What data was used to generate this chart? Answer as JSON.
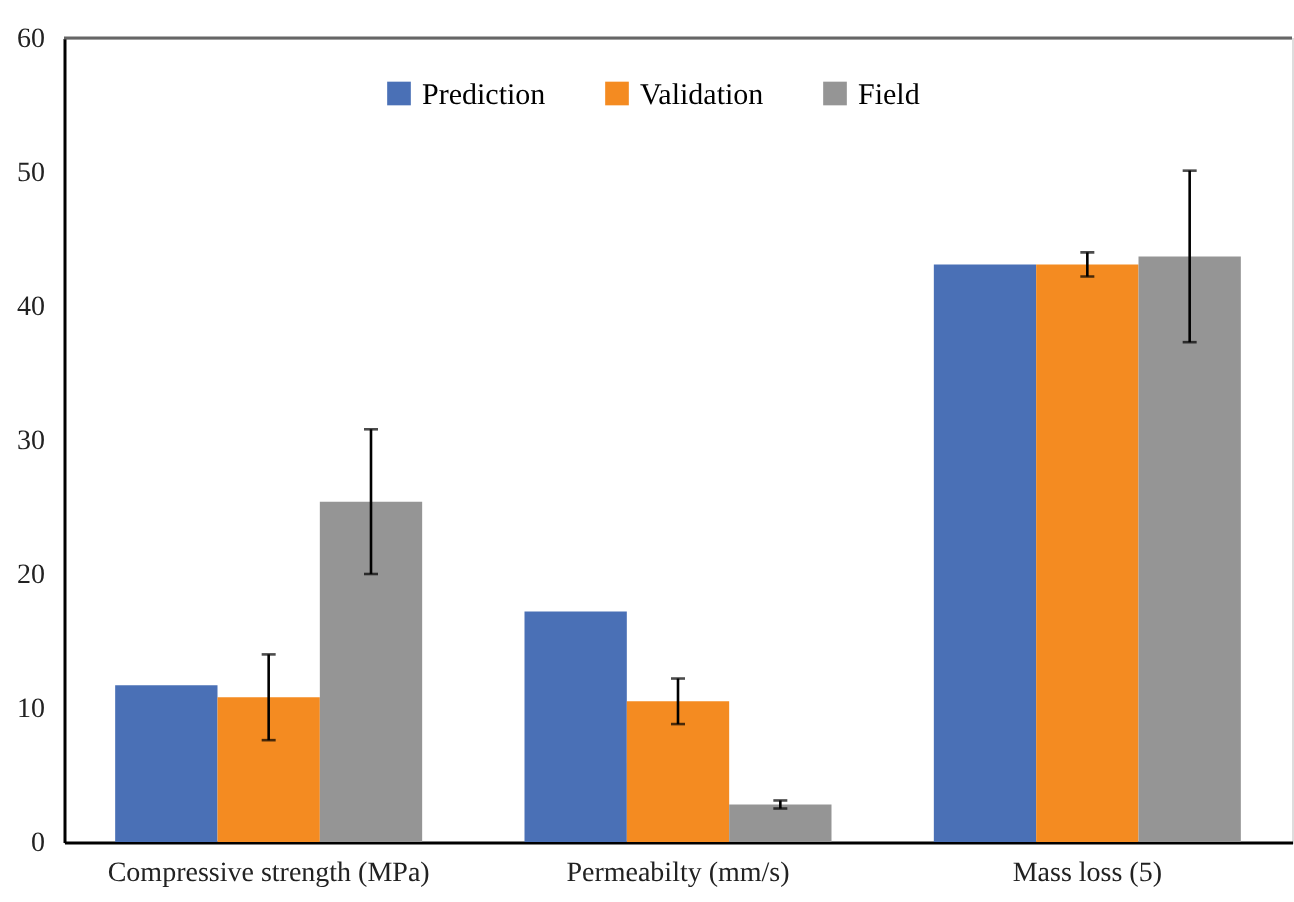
{
  "chart_data": {
    "type": "bar",
    "categories": [
      "Compressive strength (MPa)",
      "Permeabilty (mm/s)",
      "Mass loss (5)"
    ],
    "series": [
      {
        "name": "Prediction",
        "color": "#4a70b6",
        "values": [
          11.7,
          17.2,
          43.1
        ]
      },
      {
        "name": "Validation",
        "color": "#f48b21",
        "values": [
          10.8,
          10.5,
          43.1
        ],
        "errors": [
          3.2,
          1.7,
          0.9
        ]
      },
      {
        "name": "Field",
        "color": "#959595",
        "values": [
          25.4,
          2.8,
          43.7
        ],
        "errors": [
          5.4,
          0.3,
          6.4
        ]
      }
    ],
    "ylim": [
      0,
      60
    ],
    "yticks": [
      0,
      10,
      20,
      30,
      40,
      50,
      60
    ],
    "grid": false,
    "legend": "top"
  }
}
